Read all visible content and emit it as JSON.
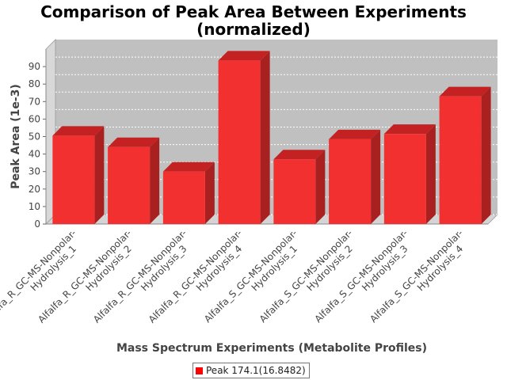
{
  "chart_data": {
    "type": "bar",
    "title_lines": [
      "Comparison of Peak Area Between Experiments",
      "(normalized)"
    ],
    "xlabel": "Mass Spectrum Experiments (Metabolite Profiles)",
    "ylabel": "Peak Area (1e-3)",
    "ylim": [
      0,
      100
    ],
    "yticks": [
      0,
      10,
      20,
      30,
      40,
      50,
      60,
      70,
      80,
      90
    ],
    "grid": true,
    "legend_position": "bottom",
    "categories": [
      [
        "Alfalfa_R_GC-MS-Nonpolar-",
        "Hydrolysis_1"
      ],
      [
        "Alfalfa_R_GC-MS-Nonpolar-",
        "Hydrolysis_2"
      ],
      [
        "Alfalfa_R_GC-MS-Nonpolar-",
        "Hydrolysis_3"
      ],
      [
        "Alfalfa_R_GC-MS-Nonpolar-",
        "Hydrolysis_4"
      ],
      [
        "Alfalfa_S_GC-MS-Nonpolar-",
        "Hydrolysis_1"
      ],
      [
        "Alfalfa_S_GC-MS-Nonpolar-",
        "Hydrolysis_2"
      ],
      [
        "Alfalfa_S_GC-MS-Nonpolar-",
        "Hydrolysis_3"
      ],
      [
        "Alfalfa_S_GC-MS-Nonpolar-",
        "Hydrolysis_4"
      ]
    ],
    "series": [
      {
        "name": "Peak 174.1(16.8482)",
        "color": "#ff0000",
        "values": [
          50.5,
          44,
          30,
          93.5,
          37,
          48.5,
          51.5,
          73
        ]
      }
    ]
  }
}
